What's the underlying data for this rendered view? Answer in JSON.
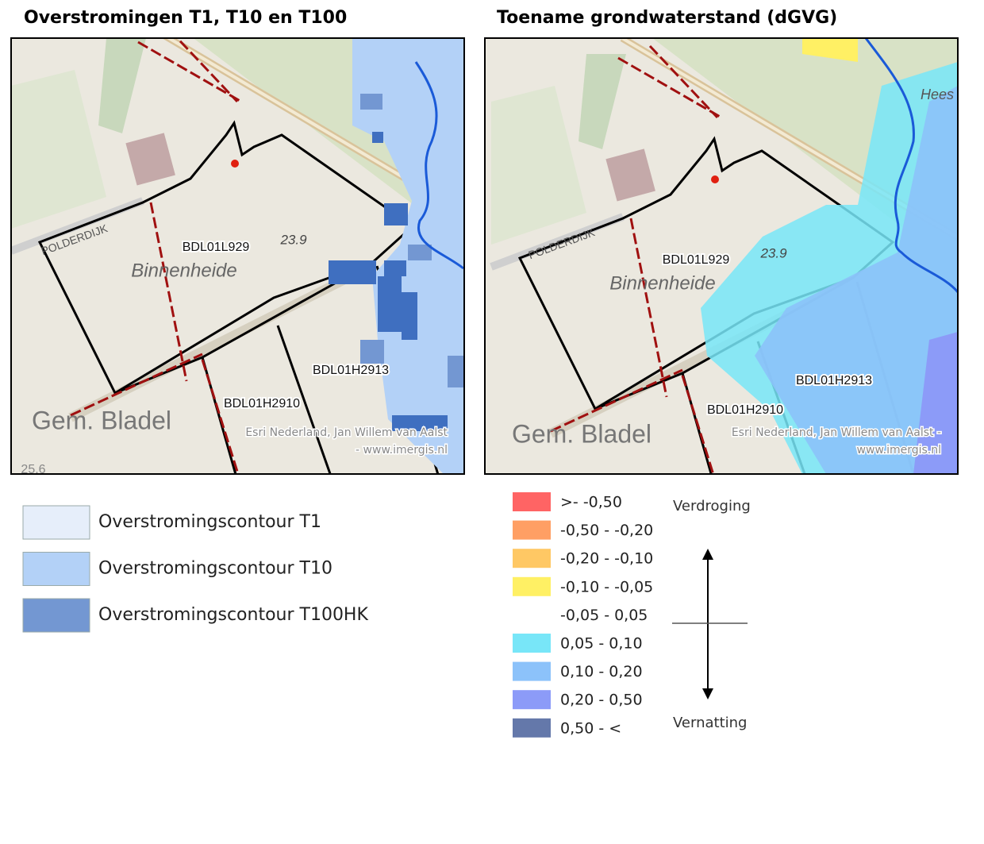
{
  "left_panel": {
    "title": "Overstromingen T1, T10 en T100",
    "map_labels": [
      "POLDERDIJK",
      "BDL01L929",
      "23.9",
      "Binnenheide",
      "BDL01H2913",
      "BDL01H2910",
      "Gem. Bladel",
      "25.6"
    ],
    "attribution": [
      "Esri Nederland, Jan Willem van Aalst",
      "- www.imergis.nl"
    ],
    "legend": [
      {
        "label": "Overstromingscontour T1",
        "color": "#e6eefa"
      },
      {
        "label": "Overstromingscontour T10",
        "color": "#b3d1f7"
      },
      {
        "label": "Overstromingscontour T100HK",
        "color": "#7397d2"
      }
    ]
  },
  "right_panel": {
    "title": "Toename grondwaterstand (dGVG)",
    "map_labels": [
      "Hees",
      "POLDERDIJK",
      "BDL01L929",
      "23.9",
      "Binnenheide",
      "BDL01H2913",
      "BDL01H2910",
      "Gem. Bladel"
    ],
    "attribution": [
      "Esri Nederland, Jan Willem van Aalst -",
      "www.imergis.nl"
    ],
    "legend": [
      {
        "label": ">- -0,50",
        "color": "#ff6464"
      },
      {
        "label": "-0,50 - -0,20",
        "color": "#ff9f64"
      },
      {
        "label": "-0,20 - -0,10",
        "color": "#ffc864"
      },
      {
        "label": "-0,10 - -0,05",
        "color": "#fff064"
      },
      {
        "label": "-0,05 - 0,05",
        "color": "#ffffff"
      },
      {
        "label": "0,05 - 0,10",
        "color": "#78e6f8"
      },
      {
        "label": "0,10 - 0,20",
        "color": "#8cc2fa"
      },
      {
        "label": "0,20 - 0,50",
        "color": "#8c9bf8"
      },
      {
        "label": "0,50 - <",
        "color": "#6478aa"
      }
    ],
    "legend_top": "Verdroging",
    "legend_bottom": "Vernatting"
  }
}
